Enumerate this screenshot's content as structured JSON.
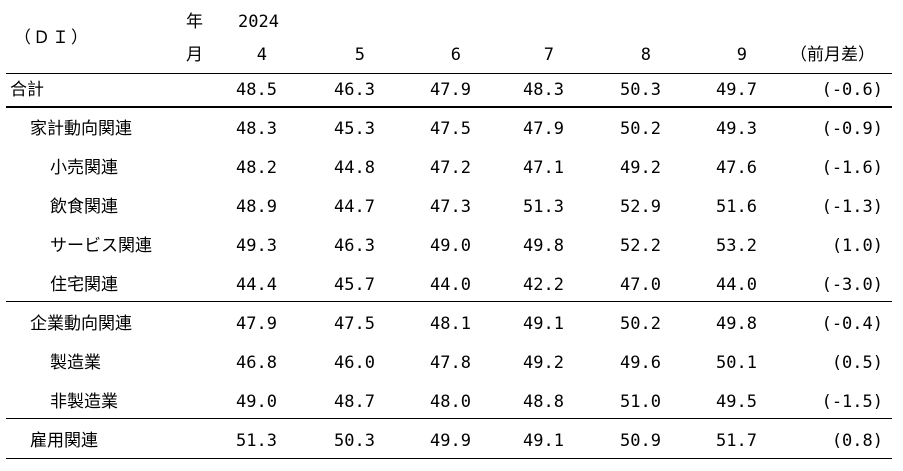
{
  "header": {
    "di_label": "（ＤＩ）",
    "year_char": "年",
    "month_char": "月",
    "year": "2024",
    "months": [
      "4",
      "5",
      "6",
      "7",
      "8",
      "9"
    ],
    "diff_label": "（前月差）"
  },
  "rows": [
    {
      "label": "合計",
      "values": [
        "48.5",
        "46.3",
        "47.9",
        "48.3",
        "50.3",
        "49.7"
      ],
      "diff": "(-0.6)"
    },
    {
      "label": "家計動向関連",
      "values": [
        "48.3",
        "45.3",
        "47.5",
        "47.9",
        "50.2",
        "49.3"
      ],
      "diff": "(-0.9)"
    },
    {
      "label": "小売関連",
      "values": [
        "48.2",
        "44.8",
        "47.2",
        "47.1",
        "49.2",
        "47.6"
      ],
      "diff": "(-1.6)"
    },
    {
      "label": "飲食関連",
      "values": [
        "48.9",
        "44.7",
        "47.3",
        "51.3",
        "52.9",
        "51.6"
      ],
      "diff": "(-1.3)"
    },
    {
      "label": "サービス関連",
      "values": [
        "49.3",
        "46.3",
        "49.0",
        "49.8",
        "52.2",
        "53.2"
      ],
      "diff": "(1.0)"
    },
    {
      "label": "住宅関連",
      "values": [
        "44.4",
        "45.7",
        "44.0",
        "42.2",
        "47.0",
        "44.0"
      ],
      "diff": "(-3.0)"
    },
    {
      "label": "企業動向関連",
      "values": [
        "47.9",
        "47.5",
        "48.1",
        "49.1",
        "50.2",
        "49.8"
      ],
      "diff": "(-0.4)"
    },
    {
      "label": "製造業",
      "values": [
        "46.8",
        "46.0",
        "47.8",
        "49.2",
        "49.6",
        "50.1"
      ],
      "diff": "(0.5)"
    },
    {
      "label": "非製造業",
      "values": [
        "49.0",
        "48.7",
        "48.0",
        "48.8",
        "51.0",
        "49.5"
      ],
      "diff": "(-1.5)"
    },
    {
      "label": "雇用関連",
      "values": [
        "51.3",
        "50.3",
        "49.9",
        "49.1",
        "50.9",
        "51.7"
      ],
      "diff": "(0.8)"
    }
  ]
}
